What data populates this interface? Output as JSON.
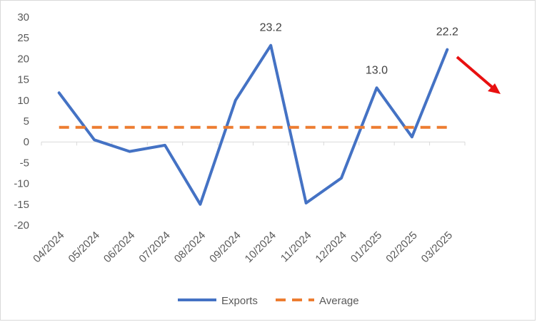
{
  "chart_data": {
    "type": "line",
    "title": "",
    "xlabel": "",
    "ylabel": "",
    "categories": [
      "04/2024",
      "05/2024",
      "06/2024",
      "07/2024",
      "08/2024",
      "09/2024",
      "10/2024",
      "11/2024",
      "12/2024",
      "01/2025",
      "02/2025",
      "03/2025"
    ],
    "ylim": [
      -20,
      30
    ],
    "yticks": [
      "30",
      "25",
      "20",
      "15",
      "10",
      "5",
      "0",
      "-5",
      "-10",
      "-15",
      "-20"
    ],
    "series": [
      {
        "name": "Exports",
        "color": "#4472C4",
        "style": "solid",
        "values": [
          11.8,
          0.5,
          -2.3,
          -0.8,
          -15.0,
          10.0,
          23.2,
          -14.7,
          -8.7,
          13.0,
          1.2,
          22.2
        ],
        "data_labels": {
          "6": "23.2",
          "9": "13.0",
          "11": "22.2"
        }
      },
      {
        "name": "Average",
        "color": "#ED7D31",
        "style": "dashed",
        "values": [
          3.5,
          3.5,
          3.5,
          3.5,
          3.5,
          3.5,
          3.5,
          3.5,
          3.5,
          3.5,
          3.5,
          3.5
        ]
      }
    ],
    "grid": false,
    "legend": "bottom",
    "annotation": {
      "type": "arrow",
      "direction": "down-right",
      "color": "#E81010"
    }
  }
}
